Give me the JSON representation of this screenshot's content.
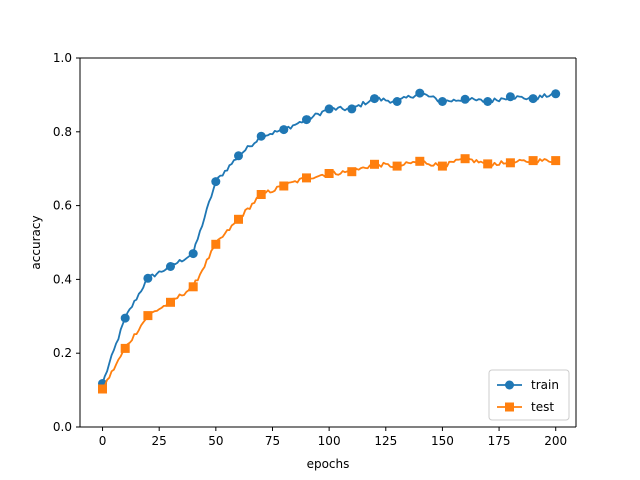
{
  "chart_data": {
    "type": "line",
    "title": "",
    "xlabel": "epochs",
    "ylabel": "accuracy",
    "xlim": [
      -9.95,
      208.95
    ],
    "ylim": [
      0.0,
      1.0
    ],
    "xticks": [
      "0",
      "25",
      "50",
      "75",
      "100",
      "125",
      "150",
      "175",
      "200"
    ],
    "yticks": [
      "0.0",
      "0.2",
      "0.4",
      "0.6",
      "0.8",
      "1.0"
    ],
    "grid": false,
    "legend": "lower-right",
    "x": [
      0,
      10,
      20,
      30,
      40,
      50,
      60,
      70,
      80,
      90,
      100,
      110,
      120,
      130,
      140,
      150,
      160,
      170,
      180,
      190,
      200
    ],
    "series": [
      {
        "name": "train",
        "marker": "circle",
        "color": "#1f77b4",
        "values": [
          0.118,
          0.295,
          0.403,
          0.435,
          0.47,
          0.665,
          0.735,
          0.788,
          0.806,
          0.833,
          0.862,
          0.862,
          0.89,
          0.882,
          0.905,
          0.882,
          0.888,
          0.882,
          0.895,
          0.89,
          0.903
        ]
      },
      {
        "name": "test",
        "marker": "square",
        "color": "#ff7f0e",
        "values": [
          0.103,
          0.213,
          0.302,
          0.338,
          0.38,
          0.495,
          0.563,
          0.63,
          0.653,
          0.675,
          0.687,
          0.692,
          0.712,
          0.707,
          0.72,
          0.707,
          0.727,
          0.713,
          0.716,
          0.722,
          0.722
        ]
      }
    ]
  }
}
